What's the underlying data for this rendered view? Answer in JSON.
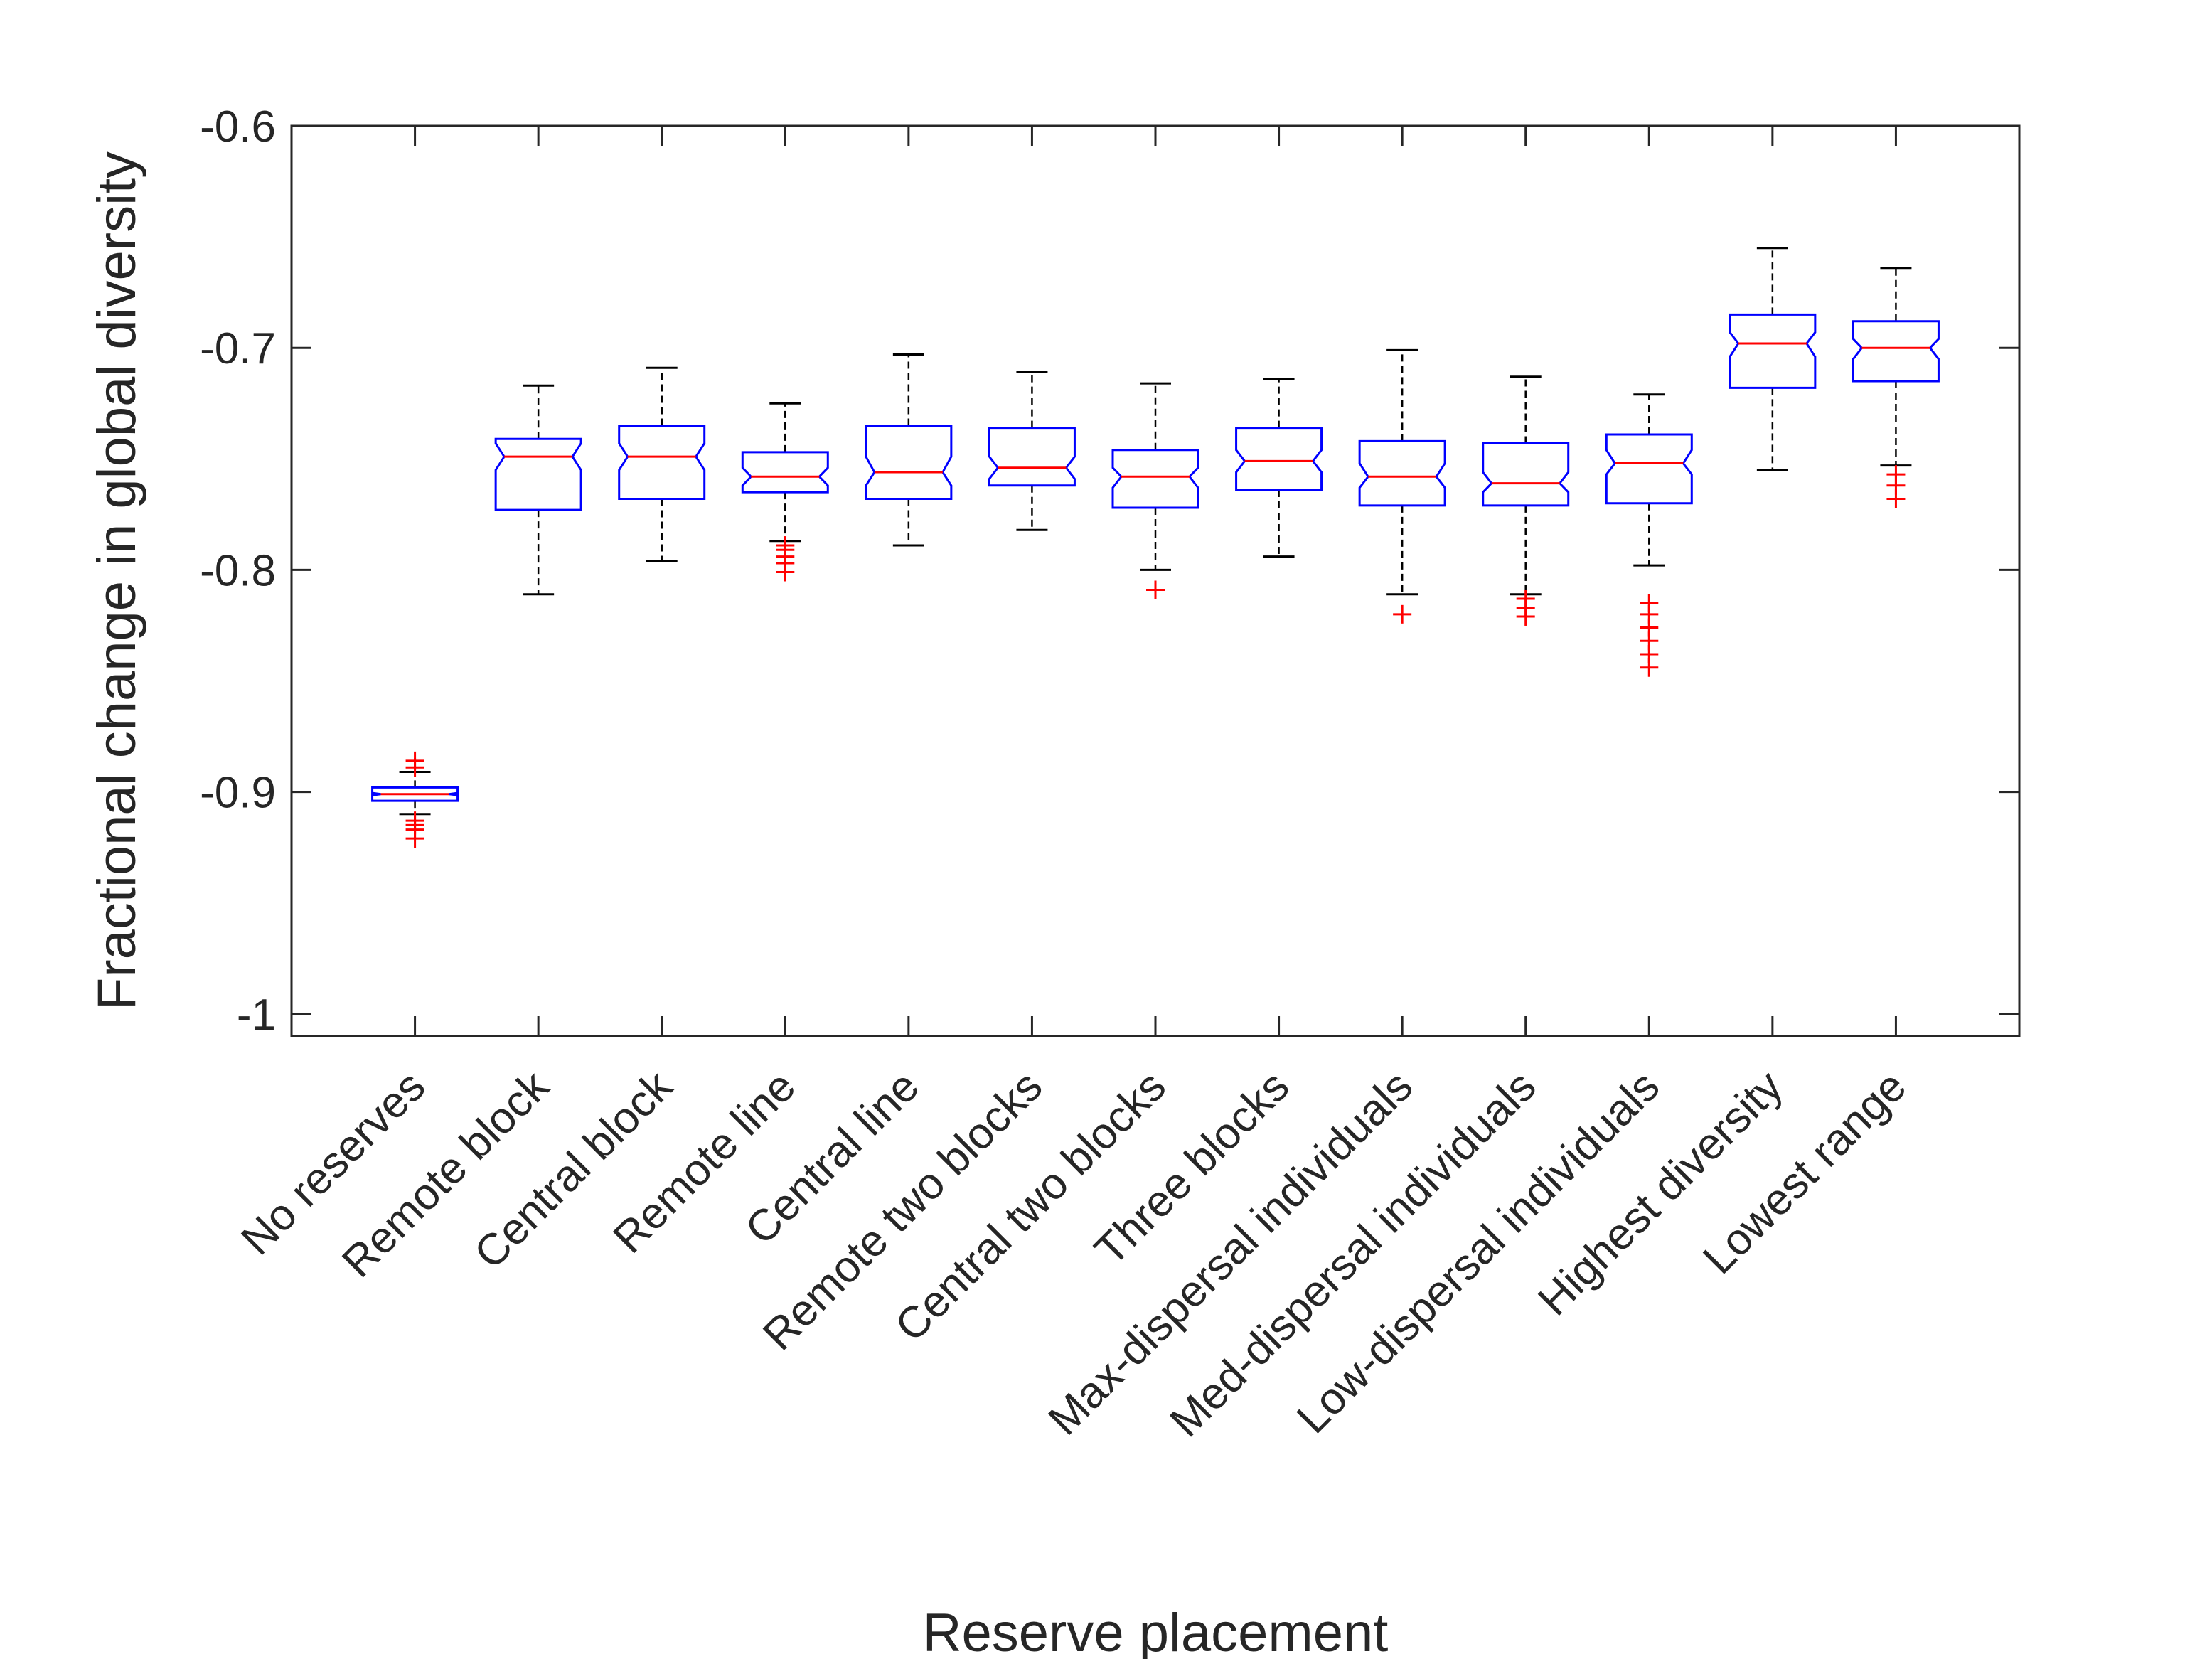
{
  "chart_data": {
    "type": "boxplot",
    "title": "",
    "xlabel": "Reserve placement",
    "ylabel": "Fractional change in global diversity",
    "ylim": [
      -1.01,
      -0.6
    ],
    "yticks": [
      -1,
      -0.9,
      -0.8,
      -0.7,
      -0.6
    ],
    "ytick_labels": [
      "-1",
      "-0.9",
      "-0.8",
      "-0.7",
      "-0.6"
    ],
    "notched": true,
    "colors": {
      "box": "#0000ff",
      "median": "#ff0000",
      "whisker": "#000000",
      "outlier": "#ff0000",
      "axis": "#262626"
    },
    "categories": [
      "No reserves",
      "Remote block",
      "Central block",
      "Remote line",
      "Central line",
      "Remote two blocks",
      "Central two blocks",
      "Three blocks",
      "Max-dispersal individuals",
      "Med-dispersal individuals",
      "Low-dispersal individuals",
      "Highest diversity",
      "Lowest range"
    ],
    "boxes": [
      {
        "whisker_low": -0.91,
        "q1": -0.904,
        "median": -0.901,
        "q3": -0.898,
        "whisker_high": -0.891,
        "notch_low": -0.9015,
        "notch_high": -0.9005,
        "outliers": [
          -0.886,
          -0.889,
          -0.913,
          -0.915,
          -0.917,
          -0.921
        ]
      },
      {
        "whisker_low": -0.811,
        "q1": -0.773,
        "median": -0.749,
        "q3": -0.741,
        "whisker_high": -0.717,
        "notch_low": -0.755,
        "notch_high": -0.743,
        "outliers": []
      },
      {
        "whisker_low": -0.796,
        "q1": -0.768,
        "median": -0.749,
        "q3": -0.735,
        "whisker_high": -0.709,
        "notch_low": -0.755,
        "notch_high": -0.743,
        "outliers": []
      },
      {
        "whisker_low": -0.787,
        "q1": -0.765,
        "median": -0.758,
        "q3": -0.747,
        "whisker_high": -0.725,
        "notch_low": -0.762,
        "notch_high": -0.754,
        "outliers": [
          -0.789,
          -0.791,
          -0.794,
          -0.797,
          -0.801
        ]
      },
      {
        "whisker_low": -0.789,
        "q1": -0.768,
        "median": -0.756,
        "q3": -0.735,
        "whisker_high": -0.703,
        "notch_low": -0.762,
        "notch_high": -0.749,
        "outliers": []
      },
      {
        "whisker_low": -0.782,
        "q1": -0.762,
        "median": -0.754,
        "q3": -0.736,
        "whisker_high": -0.711,
        "notch_low": -0.759,
        "notch_high": -0.749,
        "outliers": []
      },
      {
        "whisker_low": -0.8,
        "q1": -0.772,
        "median": -0.758,
        "q3": -0.746,
        "whisker_high": -0.716,
        "notch_low": -0.763,
        "notch_high": -0.754,
        "outliers": [
          -0.809
        ]
      },
      {
        "whisker_low": -0.794,
        "q1": -0.764,
        "median": -0.751,
        "q3": -0.736,
        "whisker_high": -0.714,
        "notch_low": -0.756,
        "notch_high": -0.746,
        "outliers": []
      },
      {
        "whisker_low": -0.811,
        "q1": -0.771,
        "median": -0.758,
        "q3": -0.742,
        "whisker_high": -0.701,
        "notch_low": -0.763,
        "notch_high": -0.752,
        "outliers": [
          -0.82
        ]
      },
      {
        "whisker_low": -0.811,
        "q1": -0.771,
        "median": -0.761,
        "q3": -0.743,
        "whisker_high": -0.713,
        "notch_low": -0.765,
        "notch_high": -0.756,
        "outliers": [
          -0.813,
          -0.817,
          -0.821
        ]
      },
      {
        "whisker_low": -0.798,
        "q1": -0.77,
        "median": -0.752,
        "q3": -0.739,
        "whisker_high": -0.721,
        "notch_low": -0.757,
        "notch_high": -0.746,
        "outliers": [
          -0.815,
          -0.82,
          -0.826,
          -0.832,
          -0.838,
          -0.844
        ]
      },
      {
        "whisker_low": -0.755,
        "q1": -0.718,
        "median": -0.698,
        "q3": -0.685,
        "whisker_high": -0.655,
        "notch_low": -0.704,
        "notch_high": -0.693,
        "outliers": []
      },
      {
        "whisker_low": -0.753,
        "q1": -0.715,
        "median": -0.7,
        "q3": -0.688,
        "whisker_high": -0.664,
        "notch_low": -0.705,
        "notch_high": -0.696,
        "outliers": [
          -0.757,
          -0.762,
          -0.768
        ]
      }
    ]
  }
}
